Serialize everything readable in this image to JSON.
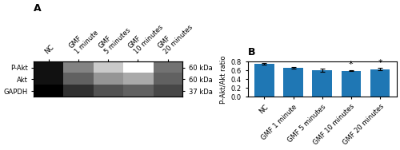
{
  "chart_data": [
    {
      "type": "heatmap",
      "title": "A",
      "x": [
        "NC",
        "GMF\n1 minute",
        "GMF\n5 minutes",
        "GMF\n10 minutes",
        "GMF\n20 minutes"
      ],
      "y": [
        "P-Akt",
        "Akt",
        "GAPDH"
      ],
      "cells": [
        [
          0.88,
          0.76,
          0.68,
          0.58,
          0.78
        ],
        [
          0.88,
          0.8,
          0.74,
          0.72,
          0.8
        ],
        [
          0.9,
          0.85,
          0.82,
          0.8,
          0.83
        ]
      ],
      "annotations": [
        "60 kDa",
        "60 kDa",
        "37 kDa"
      ]
    },
    {
      "type": "bar",
      "title": "B",
      "categories": [
        "NC",
        "GMF 1 minute",
        "GMF 5 minutes",
        "GMF 10 minutes",
        "GMF 20 minutes"
      ],
      "values": [
        0.745,
        0.66,
        0.61,
        0.595,
        0.63
      ],
      "errors": [
        0.015,
        0.018,
        0.032,
        0.016,
        0.028
      ],
      "ylabel": "P-Akt/Akt ratio",
      "ylim": [
        0.0,
        0.8
      ],
      "yticks": [
        0.0,
        0.2,
        0.4,
        0.6,
        0.8
      ],
      "annotations": [
        {
          "category": "GMF 10 minutes",
          "text": "*"
        },
        {
          "category": "GMF 20 minutes",
          "text": "*"
        }
      ]
    }
  ]
}
